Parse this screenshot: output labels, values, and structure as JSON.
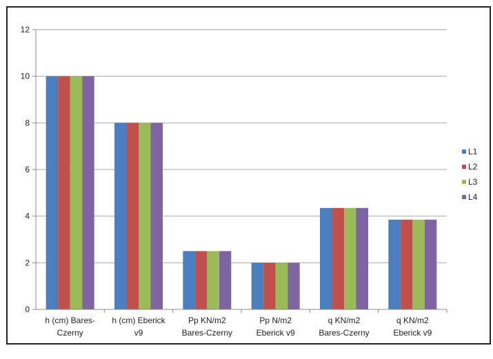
{
  "chart_data": {
    "type": "bar",
    "categories": [
      [
        "h (cm) Bares-",
        "Czerny"
      ],
      [
        "h (cm) Eberick",
        "v9"
      ],
      [
        "Pp  KN/m2",
        "Bares-Czerny"
      ],
      [
        "Pp N/m2",
        "Eberick v9"
      ],
      [
        "q KN/m2",
        "Bares-Czerny"
      ],
      [
        "q KN/m2",
        "Eberick v9"
      ]
    ],
    "series": [
      {
        "name": "L1",
        "color": "#4a7ebf",
        "values": [
          10,
          8,
          2.5,
          2,
          4.35,
          3.85
        ]
      },
      {
        "name": "L2",
        "color": "#c0504d",
        "values": [
          10,
          8,
          2.5,
          2,
          4.35,
          3.85
        ]
      },
      {
        "name": "L3",
        "color": "#9bbb59",
        "values": [
          10,
          8,
          2.5,
          2,
          4.35,
          3.85
        ]
      },
      {
        "name": "L4",
        "color": "#8064a2",
        "values": [
          10,
          8,
          2.5,
          2,
          4.35,
          3.85
        ]
      }
    ],
    "yticks": [
      "0",
      "2",
      "4",
      "6",
      "8",
      "10",
      "12"
    ],
    "ylim": [
      0,
      12
    ],
    "grid": true,
    "legend": "right"
  }
}
